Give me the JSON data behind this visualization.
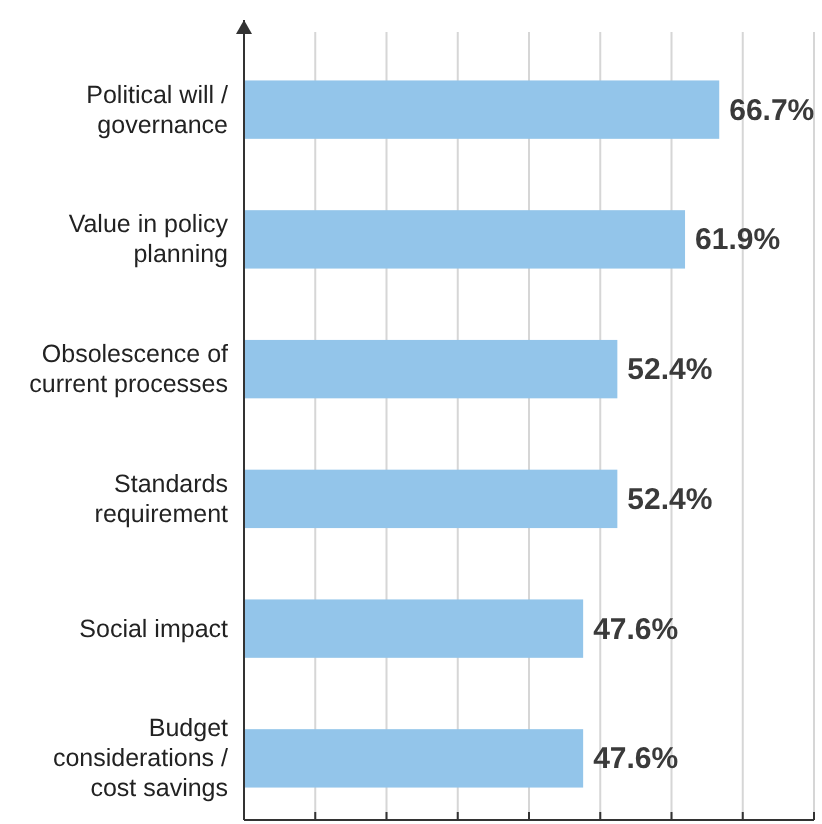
{
  "chart_data": {
    "type": "bar",
    "orientation": "horizontal",
    "categories": [
      "Political will / governance",
      "Value in policy planning",
      "Obsolescence of current processes",
      "Standards requirement",
      "Social impact",
      "Budget considerations / cost savings"
    ],
    "values": [
      66.7,
      61.9,
      52.4,
      52.4,
      47.6,
      47.6
    ],
    "value_labels": [
      "66.7%",
      "61.9%",
      "52.4%",
      "52.4%",
      "47.6%",
      "47.6%"
    ],
    "color": "#93c5ea",
    "xlim": [
      0,
      80
    ],
    "xticks": [
      {
        "value": 0,
        "label": null
      },
      {
        "value": 10,
        "label": null
      },
      {
        "value": 20,
        "label": null
      },
      {
        "value": 30,
        "label": null
      },
      {
        "value": 40,
        "label": null
      },
      {
        "value": 50,
        "label": null
      },
      {
        "value": 60,
        "label": null
      },
      {
        "value": 70,
        "label": null
      },
      {
        "value": 80,
        "label": null
      }
    ],
    "grid": "x"
  }
}
